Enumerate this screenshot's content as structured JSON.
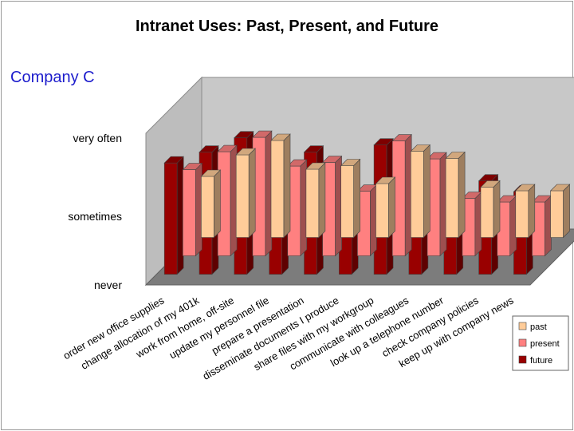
{
  "chart_data": {
    "type": "bar",
    "title": "Intranet Uses:  Past, Present, and Future",
    "subtitle": "Company C",
    "categories": [
      "order new office supplies",
      "change allocation of my 401k",
      "work from home, off-site",
      "update my personnel file",
      "prepare a presentation",
      "disseminate documents I produce",
      "share files with my workgroup",
      "communicate with colleagues",
      "look up a telephone number",
      "check company policies",
      "keep up with company news"
    ],
    "y_tick_labels": [
      "never",
      "sometimes",
      "very often"
    ],
    "ylim": [
      0,
      2
    ],
    "series": [
      {
        "name": "past",
        "color": "#ffcc99",
        "values": [
          0.85,
          1.15,
          1.35,
          0.95,
          1.0,
          0.75,
          1.2,
          1.1,
          0.7,
          0.65,
          0.65
        ]
      },
      {
        "name": "present",
        "color": "#ff8080",
        "values": [
          1.2,
          1.45,
          1.65,
          1.25,
          1.3,
          0.9,
          1.6,
          1.35,
          0.8,
          0.75,
          0.75
        ]
      },
      {
        "name": "future",
        "color": "#990000",
        "values": [
          1.55,
          1.7,
          1.9,
          1.65,
          1.7,
          1.45,
          1.8,
          1.6,
          1.3,
          1.3,
          1.15
        ]
      }
    ],
    "legend_position": "bottom-right",
    "grid": false
  }
}
